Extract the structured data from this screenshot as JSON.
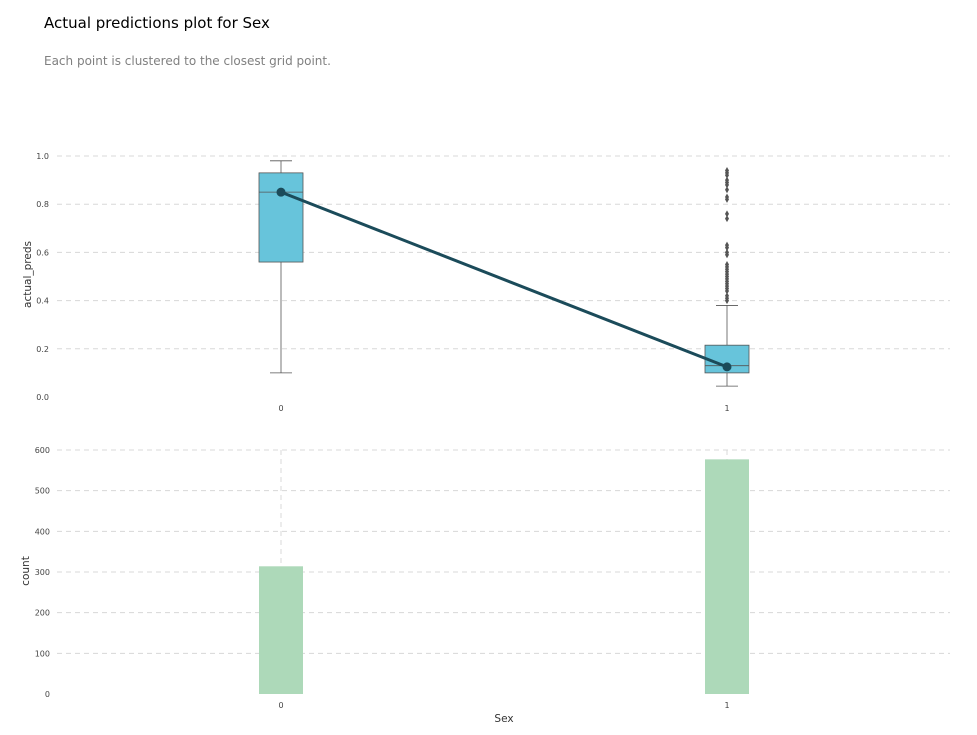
{
  "title": "Actual predictions plot for Sex",
  "subtitle": "Each point is clustered to the closest grid point.",
  "chart_data": [
    {
      "type": "box",
      "categories": [
        "0",
        "1"
      ],
      "ylabel": "actual_preds",
      "ylim": [
        0,
        1.0
      ],
      "yticks": [
        "0.0",
        "0.2",
        "0.4",
        "0.6",
        "0.8",
        "1.0"
      ],
      "grid": true,
      "box_color": "#67c4db",
      "line_color": "#1b4b5a",
      "boxes": [
        {
          "category": "0",
          "whisker_low": 0.1,
          "q1": 0.56,
          "median": 0.85,
          "q3": 0.93,
          "whisker_high": 0.98,
          "outliers": []
        },
        {
          "category": "1",
          "whisker_low": 0.045,
          "q1": 0.1,
          "median": 0.13,
          "q3": 0.215,
          "whisker_high": 0.38,
          "outliers": [
            0.4,
            0.41,
            0.42,
            0.44,
            0.45,
            0.46,
            0.47,
            0.48,
            0.49,
            0.5,
            0.51,
            0.52,
            0.53,
            0.54,
            0.55,
            0.59,
            0.6,
            0.62,
            0.63,
            0.74,
            0.76,
            0.82,
            0.83,
            0.86,
            0.88,
            0.89,
            0.9,
            0.92,
            0.93,
            0.94
          ]
        }
      ],
      "mean_line": [
        {
          "category": "0",
          "value": 0.85
        },
        {
          "category": "1",
          "value": 0.125
        }
      ]
    },
    {
      "type": "bar",
      "categories": [
        "0",
        "1"
      ],
      "values": [
        314,
        577
      ],
      "xlabel": "Sex",
      "ylabel": "count",
      "ylim": [
        0,
        600
      ],
      "yticks": [
        "0",
        "100",
        "200",
        "300",
        "400",
        "500",
        "600"
      ],
      "grid": true,
      "bar_color": "#add9b9"
    }
  ]
}
